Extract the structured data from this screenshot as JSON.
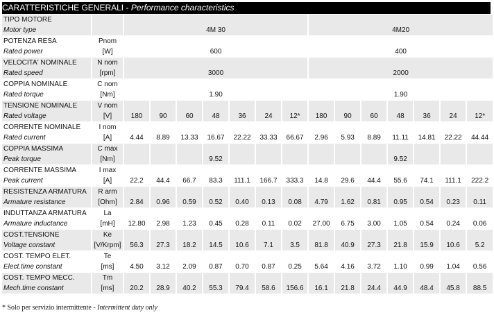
{
  "title": {
    "it": "CARATTERISTICHE GENERALI",
    "sep": " - ",
    "en": "Performance characteristics"
  },
  "motor_type": {
    "label_it": "TIPO MOTORE",
    "label_en": "Motor type",
    "models": [
      "4M 30",
      "4M20"
    ]
  },
  "single_rows": [
    {
      "label_it": "POTENZA RESA",
      "sym": "Pnom",
      "label_en": "Rated power",
      "unit": "[W]",
      "values": [
        "600",
        "400"
      ]
    },
    {
      "label_it": "VELOCITA' NOMINALE",
      "sym": "N nom",
      "label_en": "Rated speed",
      "unit": "[rpm]",
      "values": [
        "3000",
        "2000"
      ]
    },
    {
      "label_it": "COPPIA NOMINALE",
      "sym": "C nom",
      "label_en": "Rated torque",
      "unit": "[Nm]",
      "values": [
        "1.90",
        "1.90"
      ]
    }
  ],
  "detail_rows": [
    {
      "label_it": "TENSIONE NOMINALE",
      "sym": "V nom",
      "label_en": "Rated voltage",
      "unit": "[V]",
      "values": [
        "180",
        "90",
        "60",
        "48",
        "36",
        "24",
        "12*",
        "180",
        "90",
        "60",
        "48",
        "36",
        "24",
        "12*"
      ]
    },
    {
      "label_it": "CORRENTE NOMINALE",
      "sym": "I nom",
      "label_en": "Rated current",
      "unit": "[A]",
      "values": [
        "4.44",
        "8.89",
        "13.33",
        "16.67",
        "22.22",
        "33.33",
        "66.67",
        "2.96",
        "5.93",
        "8.89",
        "11.11",
        "14.81",
        "22.22",
        "44.44"
      ]
    },
    {
      "label_it": "COPPIA MASSIMA",
      "sym": "C max",
      "label_en": "Peak torque",
      "unit": "[Nm]",
      "values": [
        "",
        "",
        "",
        "9.52",
        "",
        "",
        "",
        "",
        "",
        "",
        "9.52",
        "",
        "",
        ""
      ]
    },
    {
      "label_it": "CORRENTE MASSIMA",
      "sym": "I max",
      "label_en": "Peak current",
      "unit": "[A]",
      "values": [
        "22.2",
        "44.4",
        "66.7",
        "83.3",
        "111.1",
        "166.7",
        "333.3",
        "14.8",
        "29.6",
        "44.4",
        "55.6",
        "74.1",
        "111.1",
        "222.2"
      ]
    },
    {
      "label_it": "RESISTENZA ARMATURA",
      "sym": "R arm",
      "label_en": "Armature resistance",
      "unit": "[Ohm]",
      "values": [
        "2.84",
        "0.96",
        "0.59",
        "0.52",
        "0.40",
        "0.13",
        "0.08",
        "4.79",
        "1.62",
        "0.81",
        "0.95",
        "0.54",
        "0.23",
        "0.11"
      ]
    },
    {
      "label_it": "INDUTTANZA ARMATURA",
      "sym": "La",
      "label_en": "Armature inductance",
      "unit": "[mH]",
      "values": [
        "12.80",
        "2.98",
        "1.23",
        "0.45",
        "0.28",
        "0.11",
        "0.02",
        "27.00",
        "6.75",
        "3.00",
        "1.05",
        "0.54",
        "0.24",
        "0.06"
      ]
    },
    {
      "label_it": "COST.TENSIONE",
      "sym": "Ke",
      "label_en": "Voltage constant",
      "unit": "[V/Krpm]",
      "values": [
        "56.3",
        "27.3",
        "18.2",
        "14.5",
        "10.6",
        "7.1",
        "3.5",
        "81.8",
        "40.9",
        "27.3",
        "21.8",
        "15.9",
        "10.6",
        "5.2"
      ]
    },
    {
      "label_it": "COST. TEMPO ELET.",
      "sym": "Te",
      "label_en": "Elect.time constant",
      "unit": "[ms]",
      "values": [
        "4.50",
        "3.12",
        "2.09",
        "0.87",
        "0.70",
        "0.87",
        "0.25",
        "5.64",
        "4.16",
        "3.72",
        "1.10",
        "0.99",
        "1.04",
        "0.56"
      ]
    },
    {
      "label_it": "COST. TEMPO MECC.",
      "sym": "Tm",
      "label_en": "Mech.time constant",
      "unit": "[ms]",
      "values": [
        "20.2",
        "28.9",
        "40.2",
        "55.3",
        "79.4",
        "58.6",
        "156.6",
        "16.1",
        "21.8",
        "24.4",
        "44.9",
        "48.4",
        "45.8",
        "88.5"
      ]
    }
  ],
  "footnote": {
    "it": "* Solo per servizio intermittente - ",
    "en": "Intermittent duty only"
  }
}
